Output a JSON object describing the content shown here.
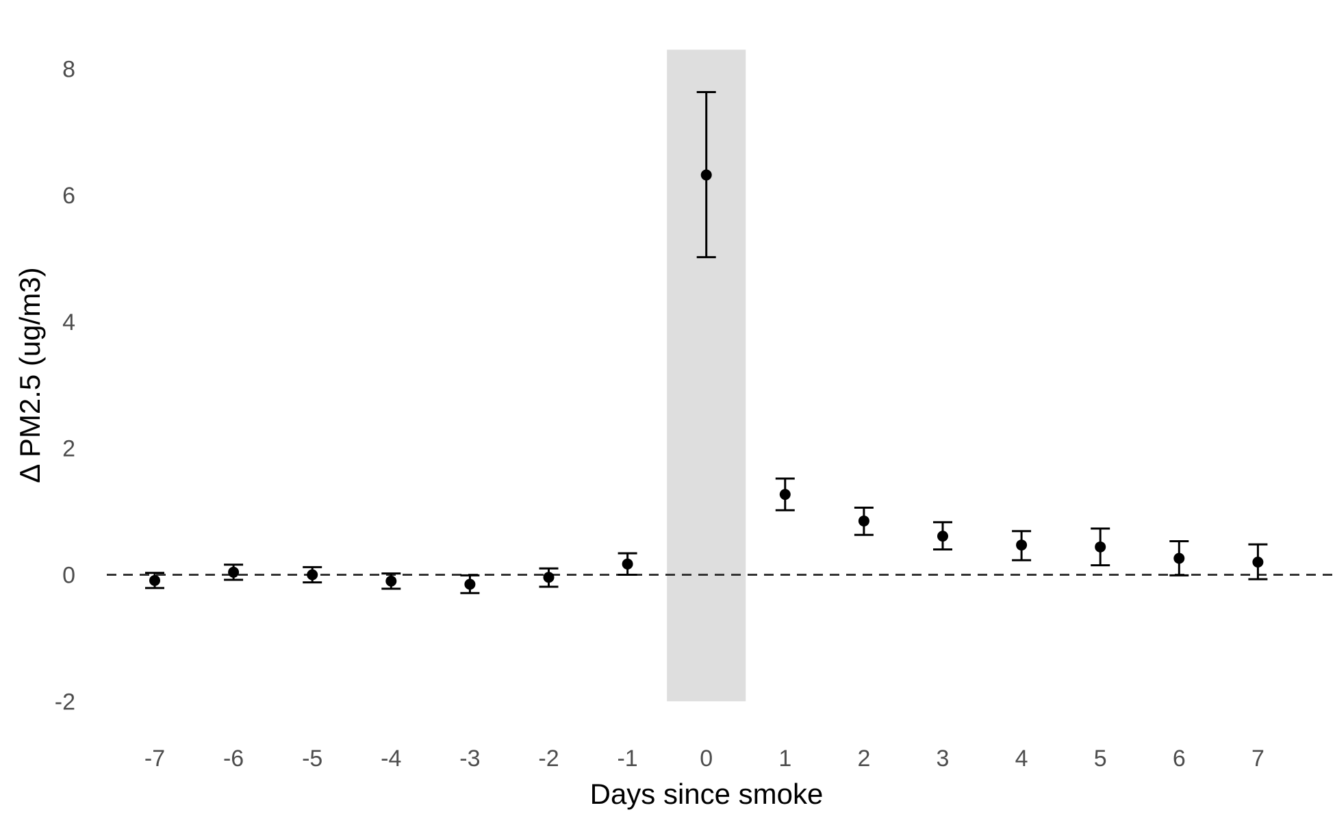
{
  "chart_data": {
    "type": "scatter",
    "title": "",
    "xlabel": "Days since smoke",
    "ylabel": "Δ PM2.5 (ug/m3)",
    "xlim": [
      -7.6,
      7.8
    ],
    "ylim": [
      -2,
      8.3
    ],
    "x_ticks": [
      -7,
      -6,
      -5,
      -4,
      -3,
      -2,
      -1,
      0,
      1,
      2,
      3,
      4,
      5,
      6,
      7
    ],
    "y_ticks": [
      -2,
      0,
      2,
      4,
      6,
      8
    ],
    "grid": false,
    "reference_line": {
      "y": 0,
      "style": "dashed"
    },
    "highlight_band": {
      "x_from": -0.5,
      "x_to": 0.5,
      "y_from": -2,
      "y_to": 8.3
    },
    "colors": {
      "points": "#000000",
      "band": "#dedede",
      "reference_line": "#333333"
    },
    "series": [
      {
        "points": [
          {
            "x": -7,
            "y": -0.09,
            "lower": -0.21,
            "upper": 0.03
          },
          {
            "x": -6,
            "y": 0.04,
            "lower": -0.08,
            "upper": 0.16
          },
          {
            "x": -5,
            "y": 0.0,
            "lower": -0.12,
            "upper": 0.12
          },
          {
            "x": -4,
            "y": -0.1,
            "lower": -0.22,
            "upper": 0.02
          },
          {
            "x": -3,
            "y": -0.15,
            "lower": -0.29,
            "upper": -0.01
          },
          {
            "x": -2,
            "y": -0.04,
            "lower": -0.19,
            "upper": 0.1
          },
          {
            "x": -1,
            "y": 0.17,
            "lower": 0.0,
            "upper": 0.34
          },
          {
            "x": 0,
            "y": 6.32,
            "lower": 5.02,
            "upper": 7.63
          },
          {
            "x": 1,
            "y": 1.27,
            "lower": 1.02,
            "upper": 1.52
          },
          {
            "x": 2,
            "y": 0.85,
            "lower": 0.63,
            "upper": 1.06
          },
          {
            "x": 3,
            "y": 0.61,
            "lower": 0.4,
            "upper": 0.83
          },
          {
            "x": 4,
            "y": 0.47,
            "lower": 0.23,
            "upper": 0.69
          },
          {
            "x": 5,
            "y": 0.44,
            "lower": 0.15,
            "upper": 0.73
          },
          {
            "x": 6,
            "y": 0.26,
            "lower": -0.01,
            "upper": 0.53
          },
          {
            "x": 7,
            "y": 0.2,
            "lower": -0.07,
            "upper": 0.48
          }
        ]
      }
    ]
  }
}
